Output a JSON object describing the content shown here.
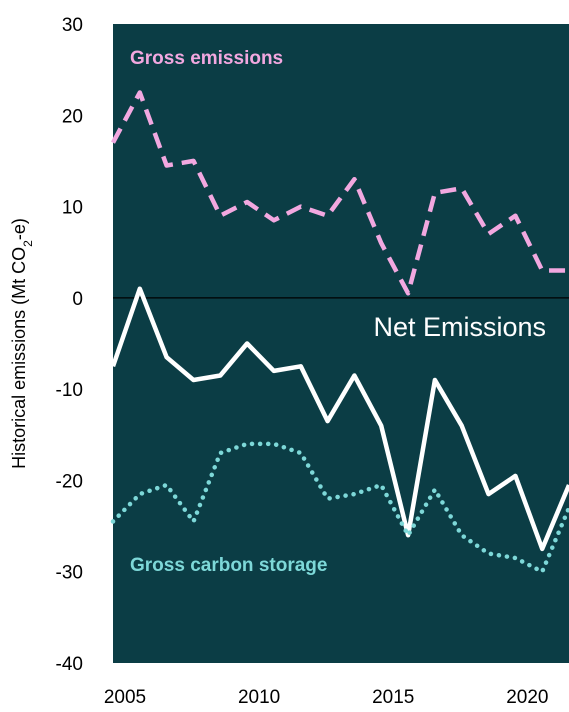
{
  "chart_data": {
    "type": "line",
    "title": "",
    "xlabel": "",
    "ylabel": "Historical emissions (Mt CO2-e)",
    "ylabel_parts": [
      "Historical emissions (Mt CO",
      "2",
      "-e)"
    ],
    "xlim": [
      2005,
      2022
    ],
    "ylim": [
      -40,
      30
    ],
    "x_ticks": [
      2005,
      2010,
      2015,
      2020
    ],
    "y_ticks": [
      -40,
      -30,
      -20,
      -10,
      0,
      10,
      20,
      30
    ],
    "grid": false,
    "x": [
      2005,
      2006,
      2007,
      2008,
      2009,
      2010,
      2011,
      2012,
      2013,
      2014,
      2015,
      2016,
      2017,
      2018,
      2019,
      2020,
      2021,
      2022
    ],
    "series": [
      {
        "name": "Gross emissions",
        "style": "dashed",
        "color": "#f2a8e0",
        "values": [
          17,
          22.5,
          14.5,
          15,
          9,
          10.5,
          8.5,
          10,
          9,
          13,
          6,
          0.5,
          11.5,
          12,
          7,
          9,
          3,
          3
        ]
      },
      {
        "name": "Net Emissions",
        "style": "solid",
        "color": "#ffffff",
        "values": [
          -7.5,
          1,
          -6.5,
          -9,
          -8.5,
          -5,
          -8,
          -7.5,
          -13.5,
          -8.5,
          -14,
          -26,
          -9,
          -14,
          -21.5,
          -19.5,
          -27.5,
          -20.5
        ]
      },
      {
        "name": "Gross carbon storage",
        "style": "dotted",
        "color": "#7dd8d8",
        "values": [
          -24.5,
          -21.5,
          -20.5,
          -24.5,
          -17,
          -16,
          -16,
          -17,
          -22,
          -21.5,
          -20.5,
          -26,
          -21,
          -26,
          -28,
          -28.5,
          -30,
          -23
        ]
      }
    ],
    "zero_line": 0
  },
  "colors": {
    "plot_background": "#0b3d45",
    "zero_line": "#000000"
  }
}
